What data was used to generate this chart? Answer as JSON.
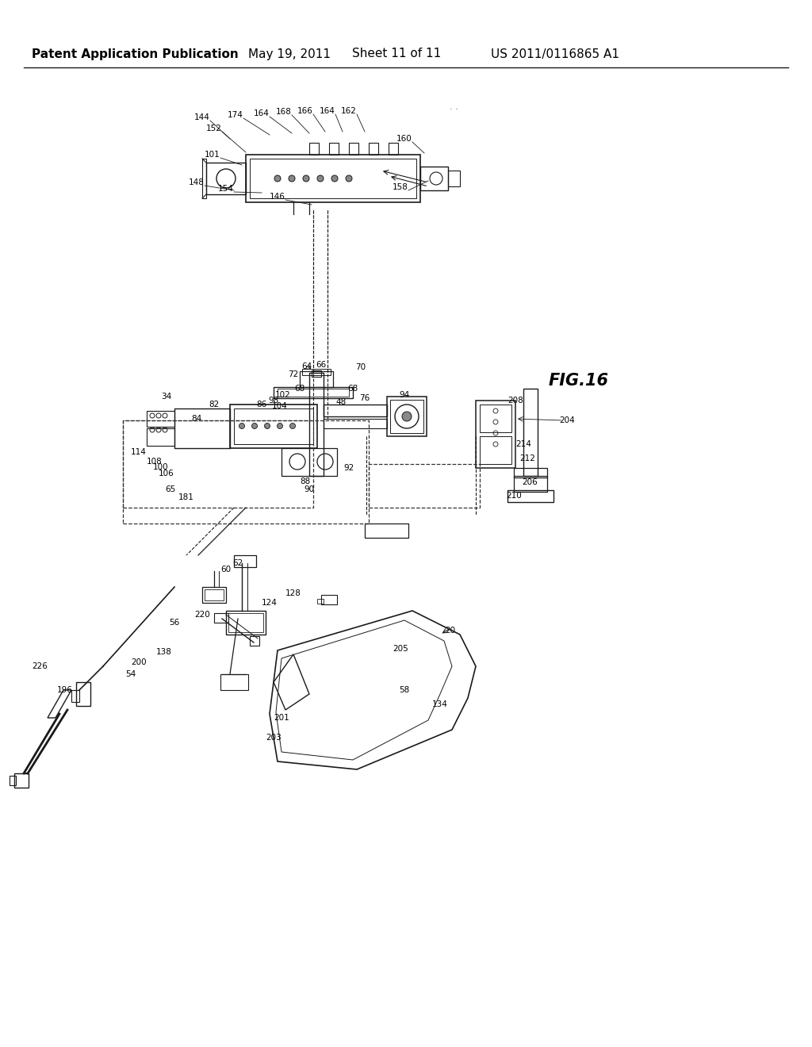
{
  "title": "Patent Application Publication",
  "date": "May 19, 2011",
  "sheet": "Sheet 11 of 11",
  "patent_num": "US 2011/0116865 A1",
  "fig_label": "FIG.16",
  "bg_color": "#ffffff",
  "text_color": "#000000",
  "header_font_size": 11,
  "diagram_color": "#1a1a1a",
  "top_component_labels": [
    "144",
    "174",
    "164",
    "168",
    "166",
    "164",
    "162",
    "160",
    "152",
    "101",
    "148",
    "154",
    "146",
    "158"
  ],
  "mid_component_labels": [
    "34",
    "64",
    "66",
    "70",
    "72",
    "68",
    "68",
    "76",
    "102",
    "98",
    "104",
    "86",
    "82",
    "84",
    "48",
    "94",
    "108",
    "100",
    "106",
    "114",
    "65",
    "181",
    "88",
    "90",
    "92",
    "204",
    "208",
    "214",
    "212",
    "206",
    "210"
  ],
  "bot_component_labels": [
    "60",
    "62",
    "56",
    "124",
    "128",
    "220",
    "138",
    "200",
    "54",
    "196",
    "226",
    "20",
    "205",
    "134",
    "58",
    "201",
    "203"
  ]
}
